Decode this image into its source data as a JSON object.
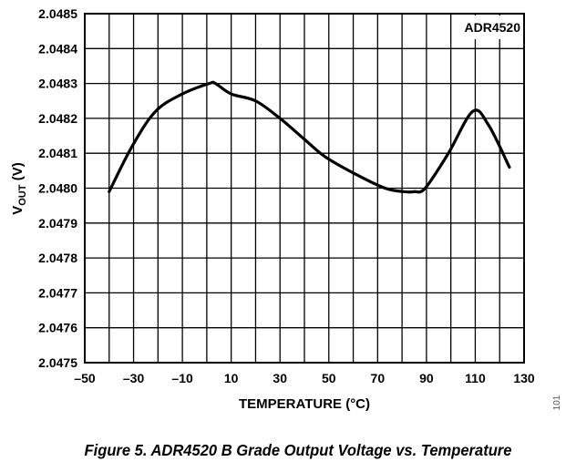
{
  "chart_data": {
    "type": "line",
    "title": "Figure 5. ADR4520 B Grade Output Voltage vs. Temperature",
    "legend_label": "ADR4520",
    "legend_position": "top-right",
    "xlabel": "TEMPERATURE (°C)",
    "ylabel_main": "V",
    "ylabel_sub": "OUT",
    "ylabel_unit": " (V)",
    "side_note": "101",
    "xlim": [
      -50,
      130
    ],
    "ylim": [
      2.0475,
      2.0485
    ],
    "grid": true,
    "x_ticks": [
      "–50",
      "–30",
      "–10",
      "10",
      "30",
      "50",
      "70",
      "90",
      "110",
      "130"
    ],
    "y_ticks": [
      "2.0475",
      "2.0476",
      "2.0477",
      "2.0478",
      "2.0479",
      "2.0480",
      "2.0481",
      "2.0482",
      "2.0483",
      "2.0484",
      "2.0485"
    ],
    "series": [
      {
        "name": "ADR4520",
        "x": [
          -40,
          -30.6,
          -21,
          -10,
          1,
          3.5,
          10,
          20,
          30,
          40,
          48.5,
          61,
          73,
          80.6,
          85,
          89.5,
          99,
          109,
          115.5,
          124
        ],
        "y": [
          2.04799,
          2.04812,
          2.04822,
          2.04827,
          2.0483,
          2.0483,
          2.04827,
          2.04825,
          2.0482,
          2.04814,
          2.04809,
          2.04804,
          2.048,
          2.04799,
          2.04799,
          2.048,
          2.0481,
          2.04822,
          2.04818,
          2.04806
        ]
      }
    ]
  }
}
